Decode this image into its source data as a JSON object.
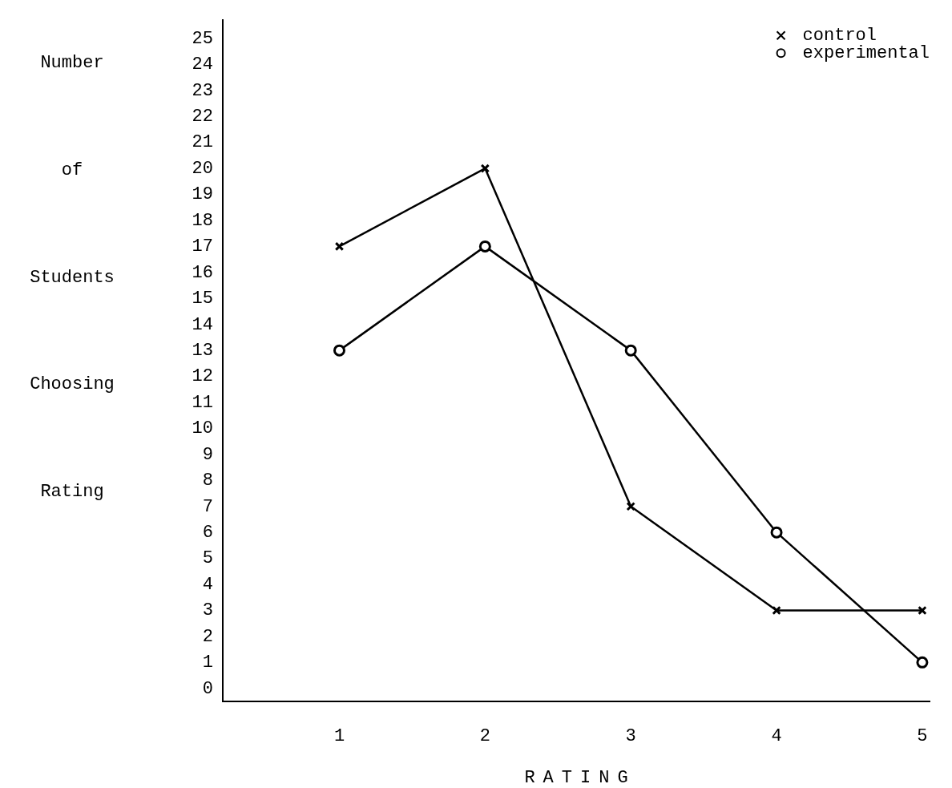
{
  "chart_data": {
    "type": "line",
    "xlabel": "RATING",
    "ylabel": "Number of Students Choosing Rating",
    "x": [
      1,
      2,
      3,
      4,
      5
    ],
    "xlim": [
      0.2,
      5.05
    ],
    "xticks": [
      1,
      2,
      3,
      4,
      5
    ],
    "ylim": [
      -0.5,
      25.7
    ],
    "yticks": [
      0,
      1,
      2,
      3,
      4,
      5,
      6,
      7,
      8,
      9,
      10,
      11,
      12,
      13,
      14,
      15,
      16,
      17,
      18,
      19,
      20,
      21,
      22,
      23,
      24,
      25
    ],
    "series": [
      {
        "name": "control",
        "color": "#000000",
        "marker": "cross",
        "values": [
          17,
          20,
          7,
          3,
          3
        ]
      },
      {
        "name": "experimental",
        "color": "#000000",
        "marker": "circle",
        "values": [
          13,
          17,
          13,
          6,
          1
        ]
      }
    ],
    "grid": false,
    "legend": "top right",
    "line_style": "solid"
  }
}
